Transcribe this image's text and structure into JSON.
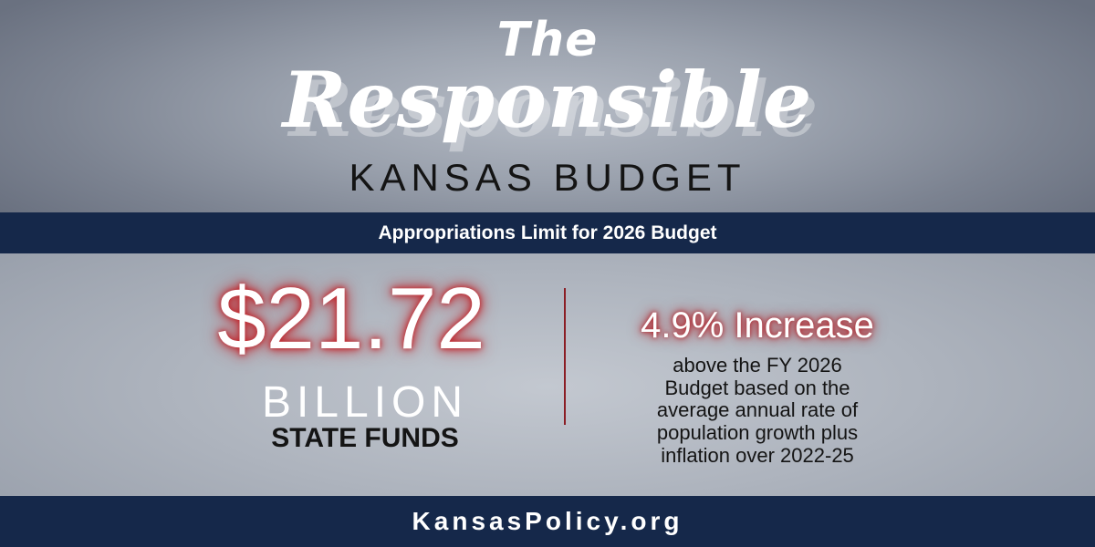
{
  "header": {
    "the": "The",
    "responsible": "Responsible",
    "subtitle": "KANSAS BUDGET"
  },
  "banner": {
    "text": "Appropriations Limit for 2026 Budget"
  },
  "amount": {
    "value": "$21.72",
    "unit": "BILLION",
    "label": "STATE FUNDS"
  },
  "increase": {
    "headline": "4.9% Increase",
    "description_lines": [
      "above the FY 2026",
      "Budget based on the",
      "average annual rate of",
      "population growth plus",
      "inflation over 2022-25"
    ]
  },
  "footer": {
    "website": "KansasPolicy.org"
  },
  "colors": {
    "navy": "#15284a",
    "accent_red": "#c0252b"
  }
}
